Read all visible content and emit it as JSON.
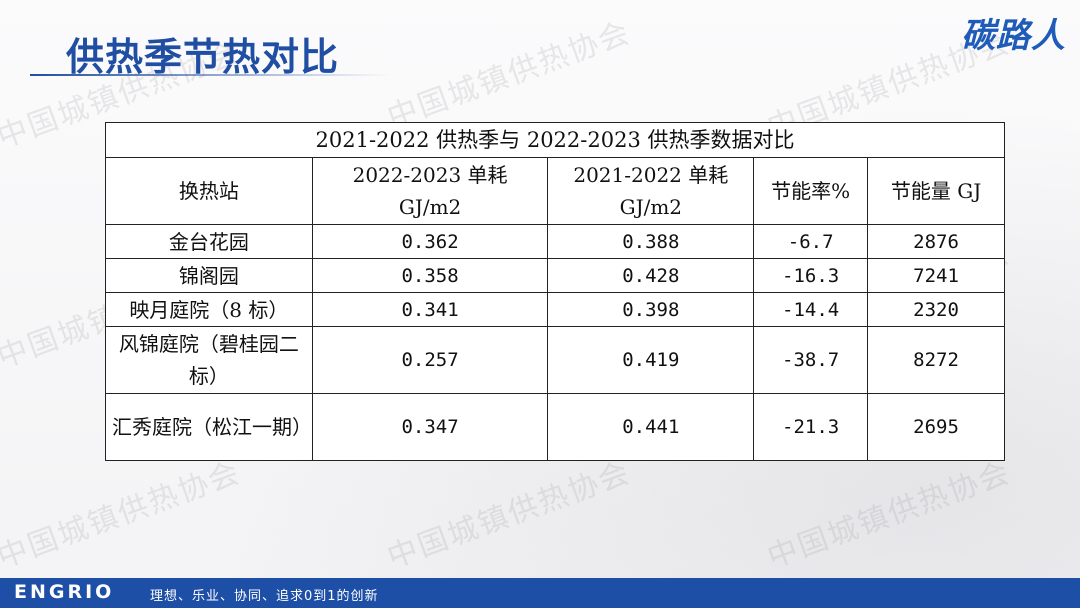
{
  "slide": {
    "title": "供热季节热对比",
    "brand": "碳路人",
    "watermark": "中国城镇供热协会"
  },
  "table": {
    "caption": "2021-2022 供热季与 2022-2023 供热季数据对比",
    "headers": {
      "station": "换热站",
      "col2023": "2022-2023 单耗 GJ/m2",
      "col2022": "2021-2022 单耗 GJ/m2",
      "rate": "节能率%",
      "saving": "节能量 GJ"
    },
    "rows": [
      {
        "station": "金台花园",
        "v2023": "0.362",
        "v2022": "0.388",
        "rate": "-6.7",
        "saving": "2876"
      },
      {
        "station": "锦阁园",
        "v2023": "0.358",
        "v2022": "0.428",
        "rate": "-16.3",
        "saving": "7241"
      },
      {
        "station": "映月庭院（8 标）",
        "v2023": "0.341",
        "v2022": "0.398",
        "rate": "-14.4",
        "saving": "2320"
      },
      {
        "station": "风锦庭院（碧桂园二标）",
        "v2023": "0.257",
        "v2022": "0.419",
        "rate": "-38.7",
        "saving": "8272"
      },
      {
        "station": "汇秀庭院（松江一期）",
        "v2023": "0.347",
        "v2022": "0.441",
        "rate": "-21.3",
        "saving": "2695"
      }
    ]
  },
  "footer": {
    "logo": "ENGRIO",
    "slogan": "理想、乐业、协同、追求0到1的创新"
  },
  "colors": {
    "title": "#1f4ea3",
    "footer_bg": "#1e4fa6",
    "brand": "#1f5bb8"
  }
}
